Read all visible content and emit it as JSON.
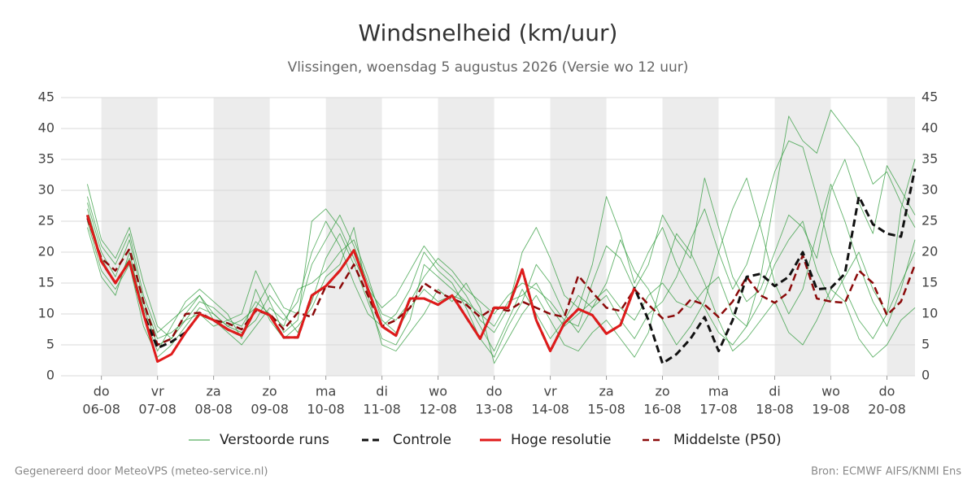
{
  "chart_data": {
    "type": "line",
    "title": "Windsnelheid (km/uur)",
    "subtitle": "Vlissingen, woensdag  5 augustus 2026 (Versie wo 12 uur)",
    "footer_left": "Gegenereerd door MeteoVPS (meteo-service.nl)",
    "footer_right": "Bron: ECMWF AIFS/KNMI Ens",
    "x": [
      -0.25,
      0,
      0.25,
      0.5,
      0.75,
      1,
      1.25,
      1.5,
      1.75,
      2,
      2.25,
      2.5,
      2.75,
      3,
      3.25,
      3.5,
      3.75,
      4,
      4.25,
      4.5,
      4.75,
      5,
      5.25,
      5.5,
      5.75,
      6,
      6.25,
      6.5,
      6.75,
      7,
      7.25,
      7.5,
      7.75,
      8,
      8.25,
      8.5,
      8.75,
      9,
      9.25,
      9.5,
      9.75,
      10,
      10.25,
      10.5,
      10.75,
      11,
      11.25,
      11.5,
      11.75,
      12,
      12.25,
      12.5,
      12.75,
      13,
      13.25,
      13.5,
      13.75,
      14,
      14.25,
      14.5
    ],
    "xlim": [
      -0.72,
      14.5
    ],
    "xticks": [
      {
        "value": 0,
        "label": "do",
        "date": "06-08"
      },
      {
        "value": 1,
        "label": "vr",
        "date": "07-08"
      },
      {
        "value": 2,
        "label": "za",
        "date": "08-08"
      },
      {
        "value": 3,
        "label": "zo",
        "date": "09-08"
      },
      {
        "value": 4,
        "label": "ma",
        "date": "10-08"
      },
      {
        "value": 5,
        "label": "di",
        "date": "11-08"
      },
      {
        "value": 6,
        "label": "wo",
        "date": "12-08"
      },
      {
        "value": 7,
        "label": "do",
        "date": "13-08"
      },
      {
        "value": 8,
        "label": "vr",
        "date": "14-08"
      },
      {
        "value": 9,
        "label": "za",
        "date": "15-08"
      },
      {
        "value": 10,
        "label": "zo",
        "date": "16-08"
      },
      {
        "value": 11,
        "label": "ma",
        "date": "17-08"
      },
      {
        "value": 12,
        "label": "di",
        "date": "18-08"
      },
      {
        "value": 13,
        "label": "wo",
        "date": "19-08"
      },
      {
        "value": 14,
        "label": "do",
        "date": "20-08"
      }
    ],
    "ylim": [
      0,
      45
    ],
    "yticks": [
      0,
      5,
      10,
      15,
      20,
      25,
      30,
      35,
      40,
      45
    ],
    "grid": true,
    "perturbed_runs": {
      "name": "Verstoorde runs",
      "color": "#2e9a3a",
      "runs": [
        [
          28,
          20,
          16,
          22,
          12,
          6,
          7,
          9,
          12,
          11,
          9,
          8,
          12,
          10,
          8,
          14,
          15,
          17,
          20,
          22,
          16,
          9,
          7,
          11,
          14,
          12,
          13,
          12,
          10,
          8,
          12,
          13,
          15,
          11,
          8,
          10,
          12,
          14,
          11,
          9,
          13,
          15,
          12,
          11,
          14,
          16,
          10,
          8,
          12,
          18,
          22,
          25,
          17,
          12,
          16,
          20,
          14,
          10,
          15,
          20
        ],
        [
          25,
          17,
          14,
          18,
          8,
          3,
          5,
          8,
          11,
          10,
          8,
          7,
          9,
          13,
          10,
          7,
          12,
          19,
          23,
          18,
          12,
          6,
          5,
          9,
          18,
          16,
          14,
          12,
          8,
          4,
          9,
          14,
          10,
          6,
          9,
          13,
          11,
          15,
          22,
          17,
          14,
          9,
          5,
          8,
          12,
          20,
          27,
          32,
          24,
          15,
          10,
          14,
          23,
          31,
          25,
          18,
          12,
          8,
          14,
          22
        ],
        [
          31,
          22,
          19,
          24,
          15,
          8,
          6,
          10,
          13,
          9,
          7,
          5,
          8,
          11,
          9,
          12,
          20,
          25,
          21,
          15,
          10,
          8,
          10,
          14,
          20,
          17,
          15,
          11,
          6,
          3,
          8,
          12,
          18,
          15,
          10,
          7,
          11,
          13,
          9,
          6,
          10,
          12,
          16,
          22,
          27,
          20,
          14,
          18,
          25,
          33,
          38,
          37,
          29,
          20,
          14,
          9,
          6,
          10,
          27,
          35
        ],
        [
          24,
          16,
          13,
          20,
          10,
          4,
          8,
          12,
          14,
          12,
          10,
          6,
          14,
          9,
          6,
          8,
          11,
          16,
          18,
          24,
          13,
          5,
          4,
          7,
          10,
          14,
          12,
          15,
          11,
          2,
          6,
          10,
          13,
          9,
          5,
          4,
          7,
          9,
          6,
          3,
          7,
          16,
          23,
          20,
          15,
          9,
          4,
          6,
          9,
          12,
          7,
          5,
          9,
          14,
          12,
          6,
          3,
          5,
          9,
          11
        ],
        [
          27,
          19,
          15,
          19,
          11,
          5,
          6,
          9,
          10,
          8,
          9,
          10,
          17,
          12,
          7,
          9,
          25,
          27,
          24,
          19,
          14,
          11,
          13,
          17,
          21,
          18,
          16,
          13,
          9,
          7,
          11,
          20,
          24,
          19,
          13,
          11,
          18,
          29,
          23,
          15,
          20,
          24,
          18,
          14,
          11,
          7,
          5,
          8,
          16,
          29,
          42,
          38,
          36,
          43,
          40,
          37,
          31,
          33,
          28,
          24
        ],
        [
          29,
          21,
          18,
          23,
          13,
          7,
          9,
          11,
          13,
          10,
          8,
          9,
          11,
          15,
          11,
          10,
          18,
          22,
          26,
          21,
          15,
          10,
          9,
          12,
          16,
          19,
          17,
          14,
          12,
          10,
          13,
          15,
          14,
          12,
          9,
          8,
          15,
          21,
          19,
          14,
          18,
          26,
          22,
          19,
          32,
          24,
          16,
          12,
          14,
          20,
          26,
          24,
          19,
          30,
          35,
          28,
          23,
          34,
          30,
          26
        ]
      ]
    },
    "series": [
      {
        "name": "Controle",
        "color": "#111111",
        "dashed": true,
        "values": [
          26,
          18.5,
          15,
          18.5,
          10,
          4.5,
          5.5,
          7,
          10,
          9,
          7.5,
          6.5,
          10.8,
          9.8,
          6.2,
          6.2,
          13,
          14.5,
          17,
          20.3,
          14,
          8,
          6.5,
          12.5,
          12.5,
          11.5,
          13,
          9.5,
          6,
          11,
          11,
          17.2,
          9,
          4,
          8.5,
          10.8,
          9.8,
          6.8,
          8.2,
          14.2,
          9,
          2,
          3.5,
          6,
          9.5,
          4,
          9,
          16,
          16.5,
          14.5,
          16,
          20,
          14,
          14.2,
          16.5,
          29,
          24.5,
          23,
          22.5,
          33.5
        ]
      },
      {
        "name": "Hoge resolutie",
        "color": "#e01b1b",
        "dashed": false,
        "values": [
          26,
          18.5,
          15,
          18.5,
          10,
          2.3,
          3.5,
          7,
          10,
          9,
          7.5,
          6.5,
          10.8,
          9.8,
          6.2,
          6.2,
          13,
          14.5,
          17,
          20.3,
          14,
          8,
          6.5,
          12.5,
          12.5,
          11.5,
          13,
          9.5,
          6,
          11,
          11,
          17.2,
          9,
          4,
          8.5,
          10.8,
          9.8,
          6.8,
          8.2,
          14.2,
          null,
          null,
          null,
          null,
          null,
          null,
          null,
          null,
          null,
          null,
          null,
          null,
          null,
          null,
          null,
          null,
          null,
          null,
          null,
          null
        ]
      },
      {
        "name": "Middelste (P50)",
        "color": "#8b0a0a",
        "dashed": true,
        "values": [
          25.5,
          19,
          17,
          20.5,
          12,
          5,
          6,
          10,
          10.2,
          9,
          8.5,
          7.5,
          10.5,
          10,
          7.5,
          10.2,
          9.5,
          14.5,
          14.2,
          18,
          13,
          8,
          9,
          11,
          15,
          13.5,
          12.5,
          11.5,
          9.5,
          11,
          10.5,
          12,
          11,
          10,
          9.5,
          16.2,
          13.5,
          11,
          10.5,
          14,
          11.5,
          9.3,
          9.8,
          12.3,
          11.5,
          9.5,
          12,
          16,
          13,
          11.8,
          13.5,
          19.5,
          12.5,
          12,
          11.8,
          17,
          15,
          9.8,
          12,
          18
        ]
      }
    ]
  }
}
